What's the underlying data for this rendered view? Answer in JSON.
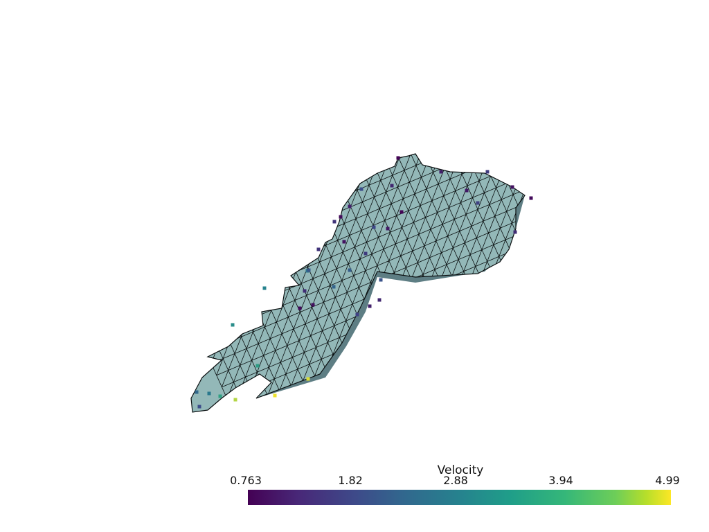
{
  "scalar_bar": {
    "title": "Velocity",
    "ticks": [
      "0.763",
      "1.82",
      "2.88",
      "3.94",
      "4.99"
    ],
    "colormap_colors": [
      "#440154",
      "#3e4989",
      "#26828e",
      "#35b779",
      "#fde725"
    ]
  },
  "mesh": {
    "surface_color": "#93b8b8",
    "shade_color": "#5e7e84",
    "edge_color": "#0a0f10"
  },
  "points": {
    "range": [
      0.763,
      4.99
    ],
    "values": [
      0.8,
      1.2,
      1.6,
      1.0,
      0.9,
      1.4,
      1.7,
      1.1,
      0.8,
      1.3,
      1.9,
      1.2,
      0.9,
      1.5,
      1.8,
      1.1,
      1.0,
      1.6,
      2.0,
      1.3,
      1.2,
      1.7,
      2.3,
      2.6,
      2.9,
      3.1,
      3.4,
      4.8,
      4.9,
      4.6,
      3.5,
      2.7,
      2.4,
      1.9,
      2.1,
      1.4,
      1.0,
      0.9,
      1.5,
      2.2
    ]
  }
}
